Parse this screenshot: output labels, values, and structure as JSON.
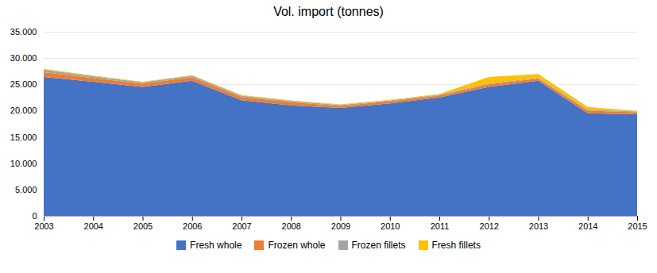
{
  "chart_data": {
    "type": "area",
    "stacked": true,
    "title": "Vol. import (tonnes)",
    "x": [
      2003,
      2004,
      2005,
      2006,
      2007,
      2008,
      2009,
      2010,
      2011,
      2012,
      2013,
      2014,
      2015
    ],
    "series": [
      {
        "name": "Fresh whole",
        "color": "#4472c4",
        "values": [
          26400,
          25500,
          24500,
          25700,
          22000,
          21000,
          20500,
          21400,
          22500,
          24500,
          25700,
          19500,
          19300
        ]
      },
      {
        "name": "Frozen whole",
        "color": "#ed7d31",
        "values": [
          900,
          700,
          600,
          650,
          600,
          600,
          400,
          400,
          400,
          500,
          400,
          500,
          400
        ]
      },
      {
        "name": "Frozen fillets",
        "color": "#a5a5a5",
        "values": [
          500,
          350,
          300,
          300,
          250,
          250,
          200,
          150,
          150,
          200,
          150,
          200,
          150
        ]
      },
      {
        "name": "Fresh fillets",
        "color": "#ffc000",
        "values": [
          150,
          100,
          100,
          100,
          100,
          100,
          100,
          100,
          100,
          1200,
          700,
          500,
          100
        ]
      }
    ],
    "xlim": [
      2003,
      2015
    ],
    "xticks": [
      2003,
      2004,
      2005,
      2006,
      2007,
      2008,
      2009,
      2010,
      2011,
      2012,
      2013,
      2014,
      2015
    ],
    "ylim": [
      0,
      35000
    ],
    "yticks": [
      0,
      {
        "value": 5000,
        "label": "5.000"
      },
      {
        "value": 10000,
        "label": "10.000"
      },
      {
        "value": 15000,
        "label": "15.000"
      },
      {
        "value": 20000,
        "label": "20.000"
      },
      {
        "value": 25000,
        "label": "25.000"
      },
      {
        "value": 30000,
        "label": "30.000"
      },
      {
        "value": 35000,
        "label": "35.000"
      }
    ],
    "grid": true,
    "legend": "bottom"
  }
}
